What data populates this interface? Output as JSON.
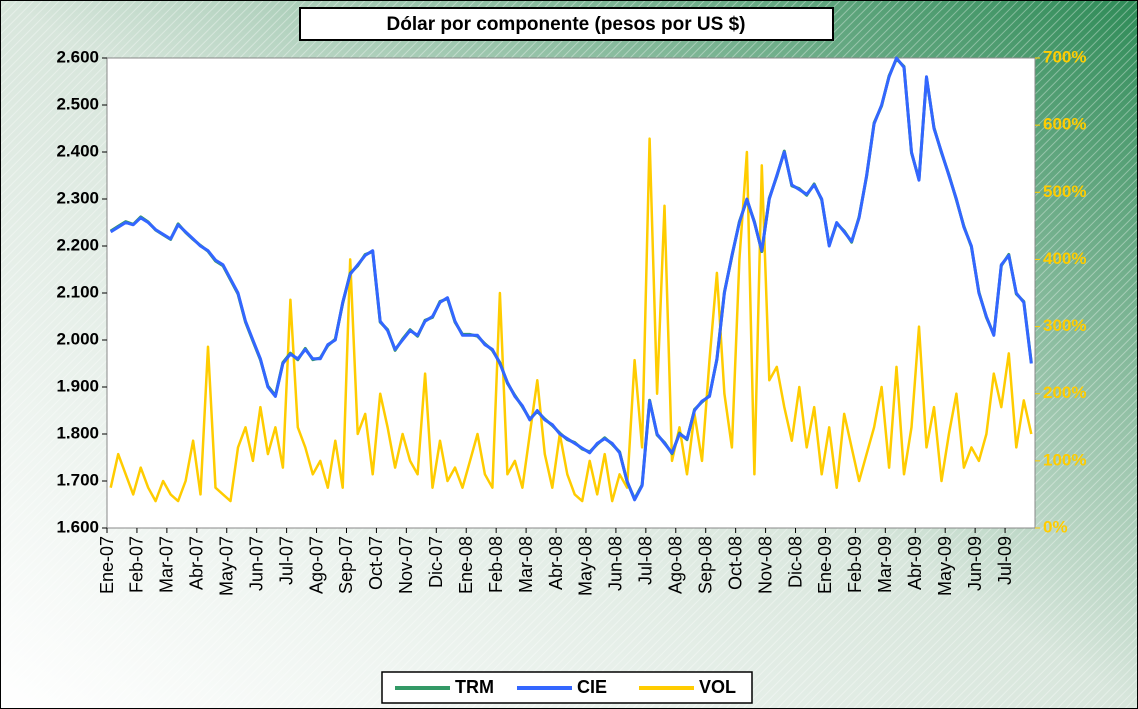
{
  "chart_data": {
    "type": "line",
    "title": "Dólar por componente (pesos por US $)",
    "categories": [
      "Ene-07",
      null,
      null,
      null,
      "Feb-07",
      null,
      null,
      null,
      "Mar-07",
      null,
      null,
      null,
      "Abr-07",
      null,
      null,
      null,
      "May-07",
      null,
      null,
      null,
      "Jun-07",
      null,
      null,
      null,
      "Jul-07",
      null,
      null,
      null,
      "Ago-07",
      null,
      null,
      null,
      "Sep-07",
      null,
      null,
      null,
      "Oct-07",
      null,
      null,
      null,
      "Nov-07",
      null,
      null,
      null,
      "Dic-07",
      null,
      null,
      null,
      "Ene-08",
      null,
      null,
      null,
      "Feb-08",
      null,
      null,
      null,
      "Mar-08",
      null,
      null,
      null,
      "Abr-08",
      null,
      null,
      null,
      "May-08",
      null,
      null,
      null,
      "Jun-08",
      null,
      null,
      null,
      "Jul-08",
      null,
      null,
      null,
      "Ago-08",
      null,
      null,
      null,
      "Sep-08",
      null,
      null,
      null,
      "Oct-08",
      null,
      null,
      null,
      "Nov-08",
      null,
      null,
      null,
      "Dic-08",
      null,
      null,
      null,
      "Ene-09",
      null,
      null,
      null,
      "Feb-09",
      null,
      null,
      null,
      "Mar-09",
      null,
      null,
      null,
      "Abr-09",
      null,
      null,
      null,
      "May-09",
      null,
      null,
      null,
      "Jun-09",
      null,
      null,
      null,
      "Jul-09",
      null,
      null,
      null
    ],
    "series": [
      {
        "name": "TRM",
        "color": "#339966",
        "values": [
          2232,
          2242,
          2252,
          2246,
          2262,
          2251,
          2234,
          2224,
          2214,
          2247,
          2229,
          2214,
          2201,
          2189,
          2168,
          2158,
          2128,
          2098,
          2038,
          1998,
          1958,
          1902,
          1882,
          1952,
          1972,
          1958,
          1982,
          1958,
          1962,
          1988,
          2002,
          2078,
          2142,
          2158,
          2182,
          2188,
          2038,
          2022,
          1978,
          2002,
          2022,
          2008,
          2042,
          2048,
          2082,
          2088,
          2038,
          2012,
          2012,
          2008,
          1992,
          1978,
          1952,
          1908,
          1882,
          1858,
          1832,
          1848,
          1832,
          1818,
          1802,
          1788,
          1782,
          1768,
          1762,
          1778,
          1792,
          1778,
          1762,
          1698,
          1662,
          1692,
          1872,
          1798,
          1782,
          1758,
          1802,
          1788,
          1852,
          1868,
          1882,
          1958,
          2102,
          2178,
          2252,
          2298,
          2252,
          2188,
          2302,
          2348,
          2402,
          2328,
          2322,
          2308,
          2332,
          2298,
          2202,
          2248,
          2232,
          2208,
          2262,
          2348,
          2462,
          2498,
          2562,
          2598,
          2582,
          2398,
          2342,
          2558,
          2452,
          2398,
          2352,
          2298,
          2242,
          2198,
          2102,
          2048,
          2012,
          2158,
          2182,
          2098,
          2082,
          1952
        ]
      },
      {
        "name": "CIE",
        "color": "#3366ff",
        "values": [
          2230,
          2240,
          2250,
          2245,
          2260,
          2250,
          2235,
          2225,
          2215,
          2245,
          2230,
          2215,
          2200,
          2190,
          2170,
          2160,
          2130,
          2100,
          2040,
          2000,
          1960,
          1900,
          1880,
          1950,
          1970,
          1960,
          1980,
          1960,
          1960,
          1990,
          2000,
          2080,
          2140,
          2160,
          2180,
          2190,
          2040,
          2020,
          1980,
          2000,
          2020,
          2010,
          2040,
          2050,
          2080,
          2090,
          2040,
          2010,
          2010,
          2010,
          1990,
          1980,
          1950,
          1910,
          1880,
          1860,
          1830,
          1850,
          1830,
          1820,
          1800,
          1790,
          1780,
          1770,
          1760,
          1780,
          1790,
          1780,
          1760,
          1700,
          1660,
          1690,
          1870,
          1800,
          1780,
          1760,
          1800,
          1790,
          1850,
          1870,
          1880,
          1960,
          2100,
          2180,
          2250,
          2300,
          2250,
          2190,
          2300,
          2350,
          2400,
          2330,
          2320,
          2310,
          2330,
          2300,
          2200,
          2250,
          2230,
          2210,
          2260,
          2350,
          2460,
          2500,
          2560,
          2600,
          2580,
          2400,
          2340,
          2560,
          2450,
          2400,
          2350,
          2300,
          2240,
          2200,
          2100,
          2050,
          2010,
          2160,
          2180,
          2100,
          2080,
          1950
        ]
      },
      {
        "name": "VOL",
        "color": "#ffcc00",
        "axis": "y2",
        "values": [
          60,
          110,
          80,
          50,
          90,
          60,
          40,
          70,
          50,
          40,
          70,
          130,
          50,
          270,
          60,
          50,
          40,
          120,
          150,
          100,
          180,
          110,
          150,
          90,
          340,
          150,
          120,
          80,
          100,
          60,
          130,
          60,
          400,
          140,
          170,
          80,
          200,
          150,
          90,
          140,
          100,
          80,
          230,
          60,
          130,
          70,
          90,
          60,
          100,
          140,
          80,
          60,
          350,
          80,
          100,
          60,
          140,
          220,
          110,
          60,
          140,
          80,
          50,
          40,
          100,
          50,
          110,
          40,
          80,
          60,
          250,
          120,
          580,
          200,
          480,
          100,
          150,
          80,
          170,
          100,
          250,
          380,
          200,
          120,
          400,
          560,
          80,
          540,
          220,
          240,
          180,
          130,
          210,
          120,
          180,
          80,
          150,
          60,
          170,
          120,
          70,
          110,
          150,
          210,
          90,
          240,
          80,
          150,
          300,
          120,
          180,
          70,
          140,
          200,
          90,
          120,
          100,
          140,
          230,
          180,
          260,
          120,
          190,
          140
        ]
      }
    ],
    "ylim": [
      1600,
      2600
    ],
    "yticks": [
      {
        "value": 1600,
        "label": "1.600"
      },
      {
        "value": 1700,
        "label": "1.700"
      },
      {
        "value": 1800,
        "label": "1.800"
      },
      {
        "value": 1900,
        "label": "1.900"
      },
      {
        "value": 2000,
        "label": "2.000"
      },
      {
        "value": 2100,
        "label": "2.100"
      },
      {
        "value": 2200,
        "label": "2.200"
      },
      {
        "value": 2300,
        "label": "2.300"
      },
      {
        "value": 2400,
        "label": "2.400"
      },
      {
        "value": 2500,
        "label": "2.500"
      },
      {
        "value": 2600,
        "label": "2.600"
      }
    ],
    "y2lim": [
      0,
      700
    ],
    "y2ticks": [
      {
        "value": 0,
        "label": "0%"
      },
      {
        "value": 100,
        "label": "100%"
      },
      {
        "value": 200,
        "label": "200%"
      },
      {
        "value": 300,
        "label": "300%"
      },
      {
        "value": 400,
        "label": "400%"
      },
      {
        "value": 500,
        "label": "500%"
      },
      {
        "value": 600,
        "label": "600%"
      },
      {
        "value": 700,
        "label": "700%"
      }
    ],
    "y2color": "#ffcc00",
    "legend": "bottom"
  }
}
